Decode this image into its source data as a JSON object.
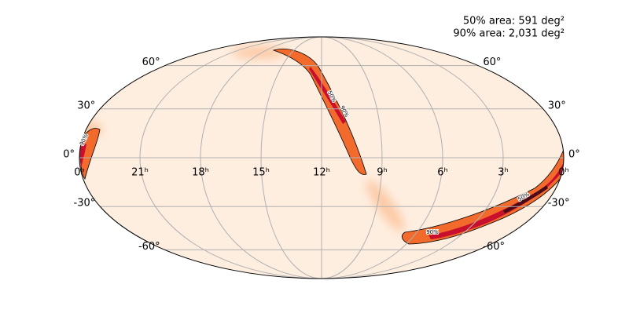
{
  "annotations": {
    "area_50": "50% area: 591 deg²",
    "area_90": "90% area: 2,031 deg²"
  },
  "map": {
    "projection": "mollweide",
    "latitude_ticks": [
      {
        "value": 60,
        "label": "60°"
      },
      {
        "value": 30,
        "label": "30°"
      },
      {
        "value": 0,
        "label": "0°"
      },
      {
        "value": -30,
        "label": "-30°"
      },
      {
        "value": -60,
        "label": "-60°"
      }
    ],
    "longitude_ticks": [
      {
        "value": 24,
        "label": "0ʰ"
      },
      {
        "value": 21,
        "label": "21ʰ"
      },
      {
        "value": 18,
        "label": "18ʰ"
      },
      {
        "value": 15,
        "label": "15ʰ"
      },
      {
        "value": 12,
        "label": "12ʰ"
      },
      {
        "value": 9,
        "label": "9ʰ"
      },
      {
        "value": 6,
        "label": "6ʰ"
      },
      {
        "value": 3,
        "label": "3ʰ"
      },
      {
        "value": 0,
        "label": "0ʰ"
      }
    ],
    "contour_labels": [
      "50%",
      "90%",
      "90%",
      "90%",
      "50%"
    ]
  }
}
